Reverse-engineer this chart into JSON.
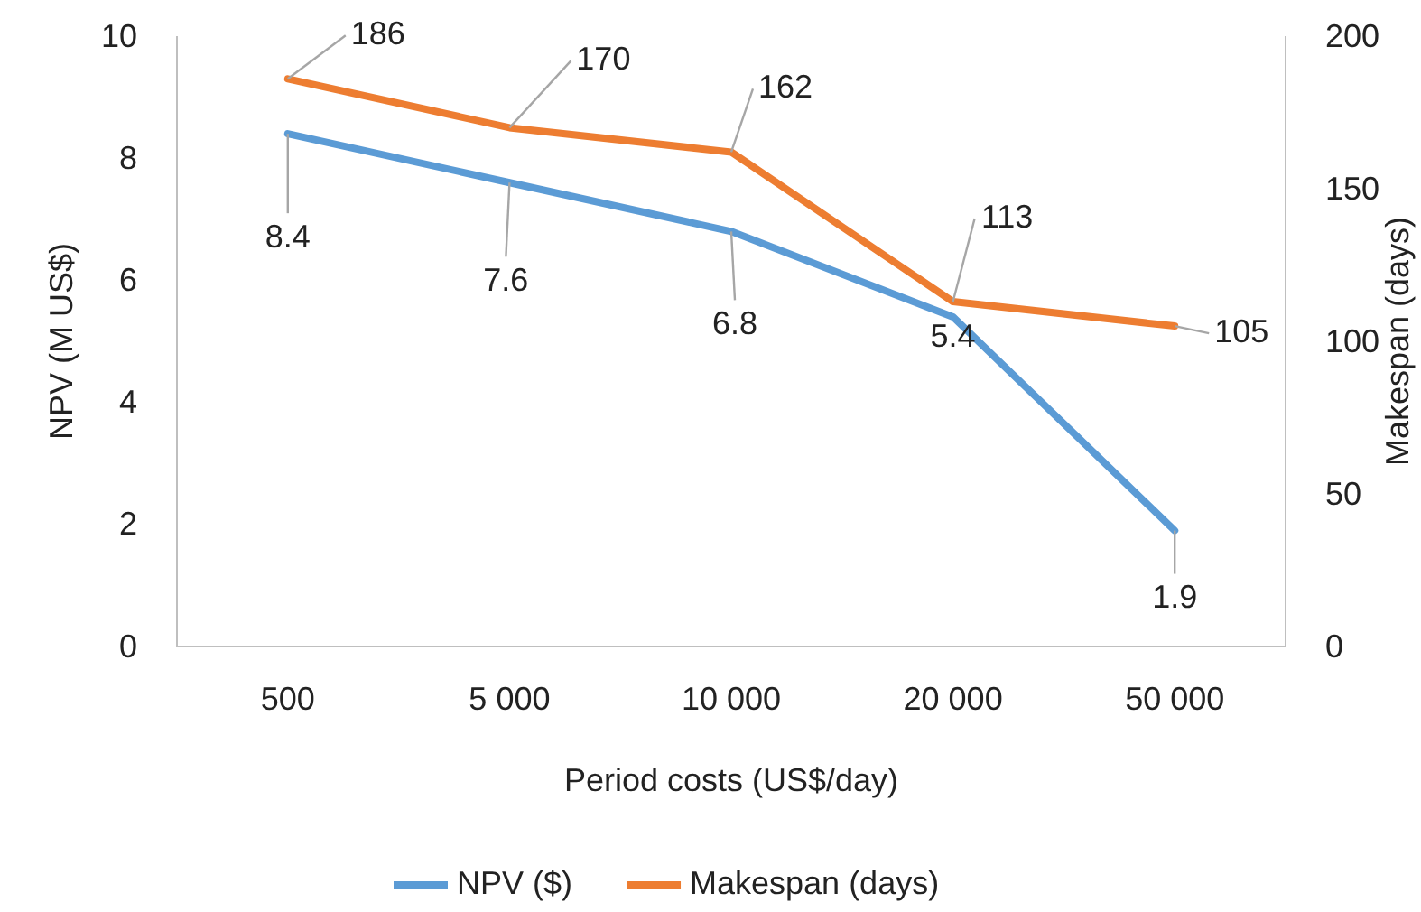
{
  "chart_data": {
    "type": "line",
    "xlabel": "Period costs (US$/day)",
    "ylabel": "NPV (M US$)",
    "y2label": "Makespan (days)",
    "categories": [
      "500",
      "5 000",
      "10 000",
      "20 000",
      "50 000"
    ],
    "series": [
      {
        "name": "NPV ($)",
        "color": "#5b9bd5",
        "values": [
          8.4,
          7.6,
          6.8,
          5.4,
          1.9
        ]
      },
      {
        "name": "Makespan (days)",
        "color": "#ed7d31",
        "axis": "y2",
        "values": [
          186,
          170,
          162,
          113,
          105
        ]
      }
    ],
    "ylim": [
      0,
      10
    ],
    "yticks": [
      0,
      2,
      4,
      6,
      8,
      10
    ],
    "y2lim": [
      0,
      200
    ],
    "y2ticks": [
      0,
      50,
      100,
      150,
      200
    ],
    "data_labels": true,
    "legend": "bottom",
    "grid": false,
    "marker": "none",
    "line_style": "solid"
  }
}
